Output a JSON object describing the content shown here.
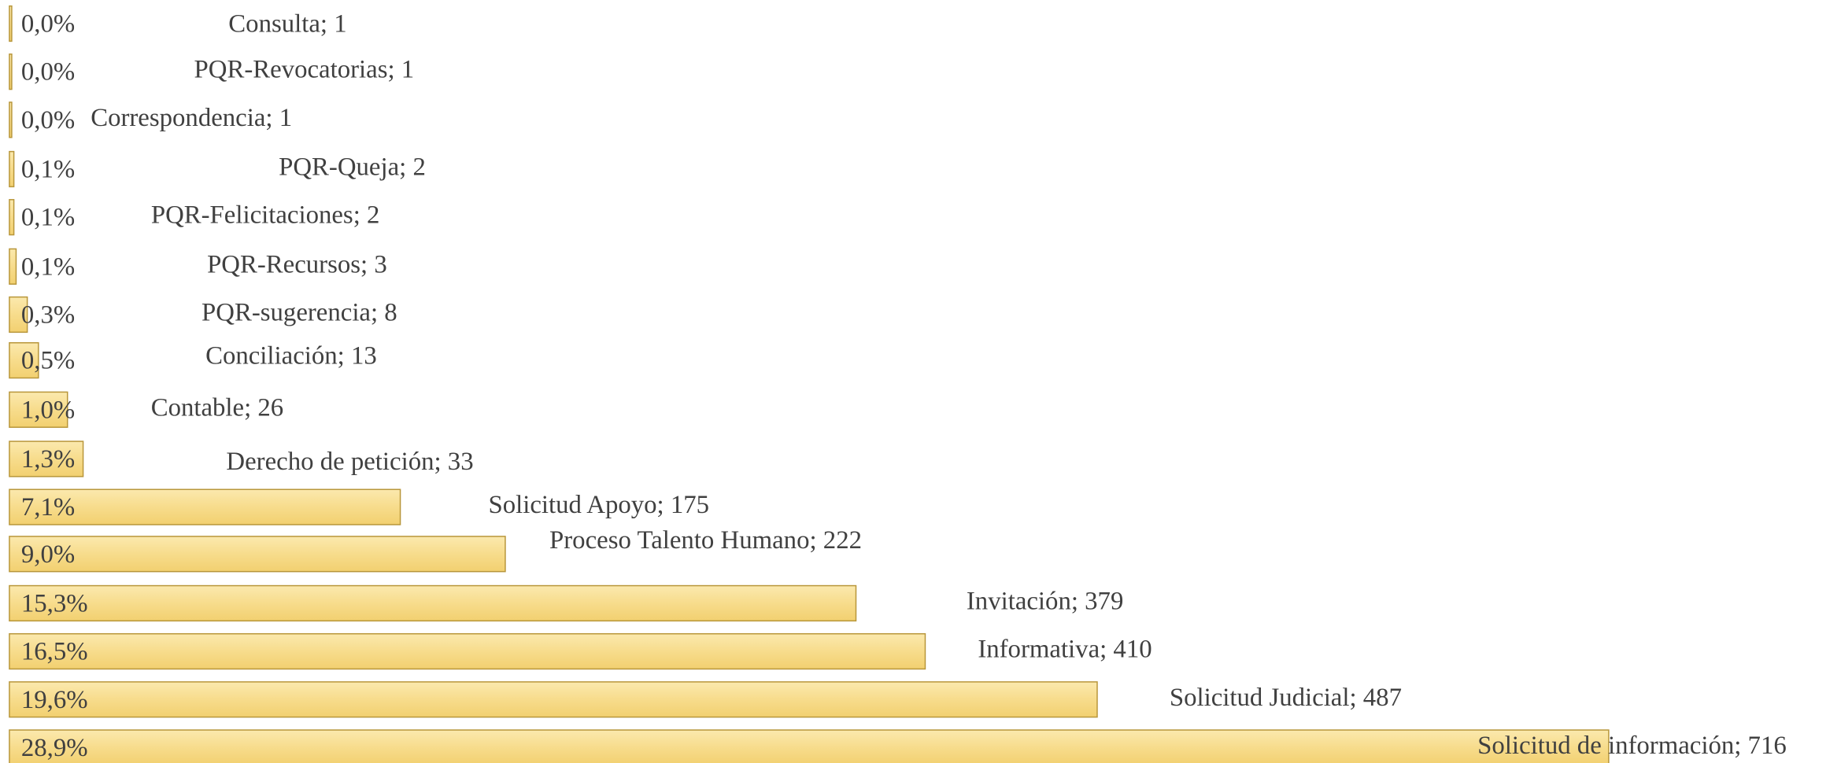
{
  "chart_data": {
    "type": "hbar",
    "value_labels": [
      "Consulta; 1",
      "PQR-Revocatorias; 1",
      "Correspondencia; 1",
      "PQR-Queja; 2",
      "PQR-Felicitaciones; 2",
      "PQR-Recursos; 3",
      "PQR-sugerencia; 8",
      "Conciliación; 13",
      "Contable; 26",
      "Derecho de petición; 33",
      "Solicitud Apoyo; 175",
      "Proceso Talento Humano; 222",
      "Invitación; 379",
      "Informativa; 410",
      "Solicitud Judicial; 487",
      "Solicitud de información; 716"
    ],
    "values": [
      1,
      1,
      1,
      2,
      2,
      3,
      8,
      13,
      26,
      33,
      175,
      222,
      379,
      410,
      487,
      716
    ],
    "percents": [
      0.0,
      0.0,
      0.0,
      0.1,
      0.1,
      0.1,
      0.3,
      0.5,
      1.0,
      1.3,
      7.1,
      9.0,
      15.3,
      16.5,
      19.6,
      28.9
    ],
    "percent_labels": [
      "0,0%",
      "0,0%",
      "0,0%",
      "0,1%",
      "0,1%",
      "0,1%",
      "0,3%",
      "0,5%",
      "1,0%",
      "1,3%",
      "7,1%",
      "9,0%",
      "15,3%",
      "16,5%",
      "19,6%",
      "28,9%"
    ],
    "xlim": [
      0,
      820
    ],
    "color": "#f7dc8c"
  }
}
